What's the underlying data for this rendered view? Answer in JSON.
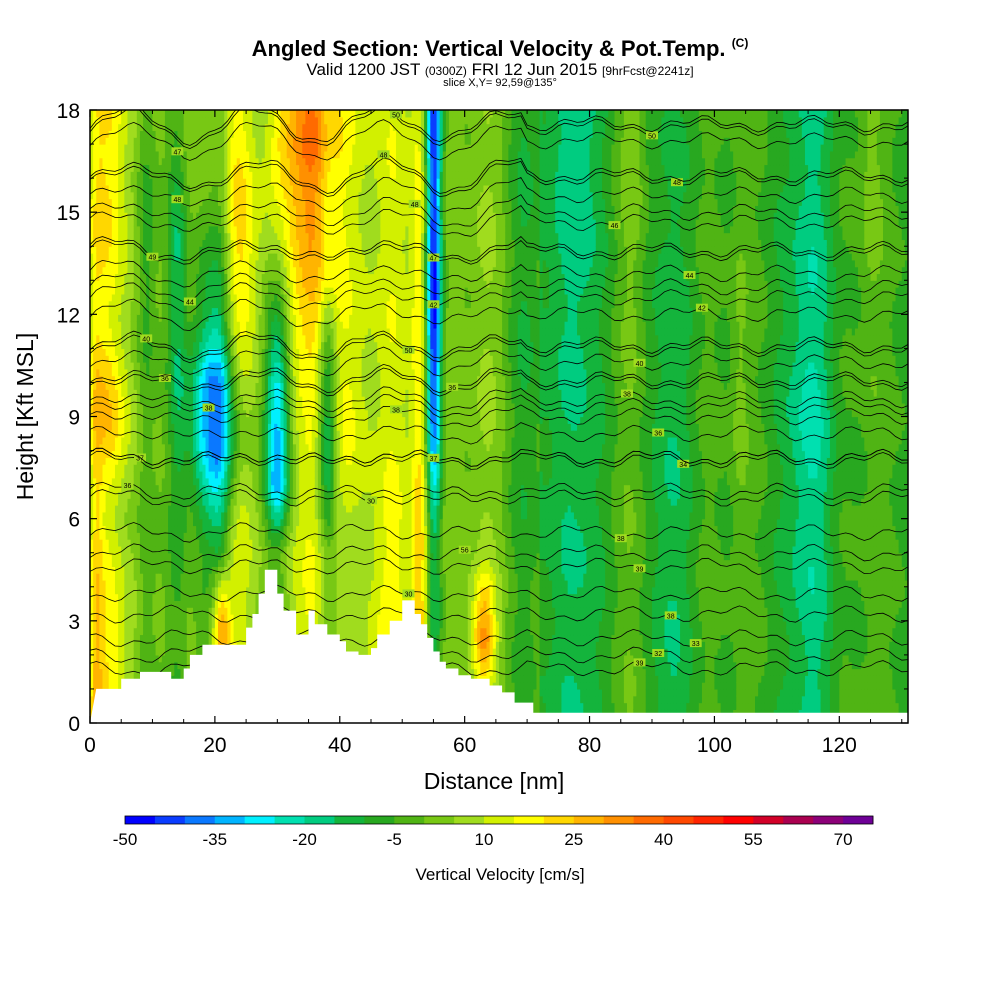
{
  "header": {
    "title": "Angled Section: Vertical Velocity & Pot.Temp.",
    "title_mark": "(C)",
    "valid_prefix": "Valid 1200 JST",
    "valid_utc": "(0300Z)",
    "valid_date": "FRI 12 Jun 2015",
    "forecast": "[9hrFcst@2241z]",
    "slice": "slice X,Y= 92,59@135°"
  },
  "chart_data": {
    "type": "heatmap",
    "xlabel": "Distance [nm]",
    "ylabel": "Height [Kft MSL]",
    "xlim": [
      0,
      131
    ],
    "ylim": [
      0,
      18
    ],
    "x_ticks": [
      0,
      20,
      40,
      60,
      80,
      100,
      120
    ],
    "y_ticks": [
      0,
      3,
      6,
      9,
      12,
      15,
      18
    ],
    "colorbar": {
      "label": "Vertical Velocity [cm/s]",
      "tick_labels": [
        "-50",
        "-35",
        "-20",
        "-5",
        "10",
        "25",
        "40",
        "55",
        "70"
      ],
      "min": -50,
      "max": 75,
      "step": 5,
      "colors": [
        "#0000ff",
        "#0a3cff",
        "#0a78ff",
        "#00b4ff",
        "#00f0ff",
        "#00e0b0",
        "#00cc80",
        "#14b43c",
        "#28a820",
        "#50b414",
        "#78c814",
        "#a0dc1e",
        "#d2f000",
        "#ffff00",
        "#ffd700",
        "#ffb400",
        "#ff9000",
        "#ff6a00",
        "#ff4800",
        "#ff2400",
        "#ff0000",
        "#d20028",
        "#aa0050",
        "#8c0078",
        "#6e0096"
      ]
    },
    "velocity_columns": [
      {
        "x": 1,
        "w": 1,
        "profile": [
          [
            0,
            15
          ],
          [
            18,
            5
          ]
        ]
      },
      {
        "x": 3,
        "w": 3.5,
        "profile": [
          [
            2,
            20
          ],
          [
            6,
            12
          ],
          [
            9,
            25
          ],
          [
            12,
            15
          ],
          [
            15,
            20
          ],
          [
            18,
            20
          ]
        ]
      },
      {
        "x": 9,
        "w": 1.5,
        "profile": [
          [
            3,
            -5
          ],
          [
            9,
            -5
          ],
          [
            14,
            -10
          ],
          [
            18,
            -5
          ]
        ]
      },
      {
        "x": 14,
        "w": 1.5,
        "profile": [
          [
            4,
            -5
          ],
          [
            9,
            -10
          ],
          [
            14,
            -15
          ],
          [
            18,
            -5
          ]
        ]
      },
      {
        "x": 20,
        "w": 4,
        "profile": [
          [
            1,
            -5
          ],
          [
            5,
            -5
          ],
          [
            8,
            -35
          ],
          [
            10,
            -35
          ],
          [
            12,
            -15
          ],
          [
            15,
            0
          ],
          [
            18,
            5
          ]
        ]
      },
      {
        "x": 21,
        "w": 1.5,
        "profile": [
          [
            2,
            30
          ],
          [
            3,
            30
          ],
          [
            4,
            15
          ],
          [
            5,
            -5
          ]
        ]
      },
      {
        "x": 24,
        "w": 3,
        "profile": [
          [
            9,
            15
          ],
          [
            13,
            25
          ],
          [
            16,
            20
          ],
          [
            18,
            15
          ]
        ]
      },
      {
        "x": 30,
        "w": 2,
        "profile": [
          [
            5,
            -10
          ],
          [
            7,
            -40
          ],
          [
            10,
            -35
          ],
          [
            13,
            -10
          ],
          [
            16,
            5
          ]
        ]
      },
      {
        "x": 35,
        "w": 5,
        "profile": [
          [
            9,
            15
          ],
          [
            12,
            25
          ],
          [
            15,
            30
          ],
          [
            17,
            40
          ],
          [
            18,
            35
          ]
        ]
      },
      {
        "x": 38,
        "w": 1.5,
        "profile": [
          [
            5,
            -10
          ],
          [
            8,
            -30
          ],
          [
            11,
            -20
          ],
          [
            13,
            -5
          ]
        ]
      },
      {
        "x": 41,
        "w": 3,
        "profile": [
          [
            4,
            5
          ],
          [
            9,
            15
          ],
          [
            13,
            10
          ],
          [
            18,
            10
          ]
        ]
      },
      {
        "x": 48,
        "w": 3,
        "profile": [
          [
            4,
            20
          ],
          [
            8,
            15
          ],
          [
            12,
            15
          ],
          [
            18,
            15
          ]
        ]
      },
      {
        "x": 55,
        "w": 1.3,
        "profile": [
          [
            5,
            -15
          ],
          [
            9,
            -40
          ],
          [
            12,
            -50
          ],
          [
            15,
            -45
          ],
          [
            18,
            -45
          ]
        ]
      },
      {
        "x": 53,
        "w": 1.5,
        "profile": [
          [
            4,
            25
          ],
          [
            9,
            20
          ],
          [
            14,
            20
          ],
          [
            18,
            15
          ]
        ]
      },
      {
        "x": 63,
        "w": 2,
        "profile": [
          [
            1,
            15
          ],
          [
            2.5,
            35
          ],
          [
            4,
            20
          ],
          [
            5,
            5
          ]
        ]
      },
      {
        "x": 70,
        "w": 3,
        "profile": [
          [
            0,
            -5
          ],
          [
            9,
            -10
          ],
          [
            18,
            -10
          ]
        ]
      },
      {
        "x": 78,
        "w": 4,
        "profile": [
          [
            0,
            -10
          ],
          [
            9,
            -10
          ],
          [
            18,
            -15
          ]
        ]
      },
      {
        "x": 87,
        "w": 2,
        "profile": [
          [
            0,
            5
          ],
          [
            9,
            5
          ],
          [
            18,
            10
          ]
        ]
      },
      {
        "x": 93,
        "w": 3,
        "profile": [
          [
            0,
            -10
          ],
          [
            9,
            -10
          ],
          [
            18,
            -5
          ]
        ]
      },
      {
        "x": 104,
        "w": 1.5,
        "profile": [
          [
            3,
            5
          ],
          [
            10,
            10
          ],
          [
            16,
            5
          ]
        ]
      },
      {
        "x": 115,
        "w": 4,
        "profile": [
          [
            2,
            -10
          ],
          [
            9,
            -15
          ],
          [
            16,
            -10
          ]
        ]
      },
      {
        "x": 125,
        "w": 2,
        "profile": [
          [
            0,
            5
          ],
          [
            8,
            5
          ],
          [
            16,
            10
          ]
        ]
      }
    ],
    "terrain": [
      [
        0,
        0
      ],
      [
        1,
        1
      ],
      [
        5,
        1
      ],
      [
        5,
        1.3
      ],
      [
        8,
        1.3
      ],
      [
        8,
        1.5
      ],
      [
        13,
        1.5
      ],
      [
        13,
        1.3
      ],
      [
        15,
        1.3
      ],
      [
        15,
        1.6
      ],
      [
        16,
        1.6
      ],
      [
        16,
        2
      ],
      [
        18,
        2
      ],
      [
        18,
        2.3
      ],
      [
        20,
        2.3
      ],
      [
        20,
        2.3
      ],
      [
        25,
        2.3
      ],
      [
        25,
        2.8
      ],
      [
        26,
        2.8
      ],
      [
        26,
        3.2
      ],
      [
        27,
        3.2
      ],
      [
        27,
        3.8
      ],
      [
        28,
        3.8
      ],
      [
        28,
        4.5
      ],
      [
        30,
        4.5
      ],
      [
        30,
        3.8
      ],
      [
        31,
        3.8
      ],
      [
        31,
        3.3
      ],
      [
        33,
        3.3
      ],
      [
        33,
        2.6
      ],
      [
        35,
        2.6
      ],
      [
        35,
        3.3
      ],
      [
        36,
        3.3
      ],
      [
        36,
        2.9
      ],
      [
        38,
        2.9
      ],
      [
        38,
        2.6
      ],
      [
        40,
        2.6
      ],
      [
        40,
        2.4
      ],
      [
        41,
        2.4
      ],
      [
        41,
        2.1
      ],
      [
        43,
        2.1
      ],
      [
        43,
        2.0
      ],
      [
        45,
        2.0
      ],
      [
        45,
        2.2
      ],
      [
        46,
        2.2
      ],
      [
        46,
        2.6
      ],
      [
        48,
        2.6
      ],
      [
        48,
        3.0
      ],
      [
        50,
        3.0
      ],
      [
        50,
        3.6
      ],
      [
        52,
        3.6
      ],
      [
        52,
        3.2
      ],
      [
        53,
        3.2
      ],
      [
        53,
        2.9
      ],
      [
        54,
        2.9
      ],
      [
        54,
        2.5
      ],
      [
        55,
        2.5
      ],
      [
        55,
        2.1
      ],
      [
        56,
        2.1
      ],
      [
        56,
        1.8
      ],
      [
        57,
        1.8
      ],
      [
        57,
        1.6
      ],
      [
        59,
        1.6
      ],
      [
        59,
        1.4
      ],
      [
        61,
        1.4
      ],
      [
        61,
        1.3
      ],
      [
        64,
        1.3
      ],
      [
        64,
        1.1
      ],
      [
        66,
        1.1
      ],
      [
        66,
        0.9
      ],
      [
        68,
        0.9
      ],
      [
        68,
        0.6
      ],
      [
        71,
        0.6
      ],
      [
        71,
        0.3
      ],
      [
        131,
        0.3
      ],
      [
        131,
        0
      ]
    ],
    "theta_contours": [
      {
        "level": "39",
        "base": 1.6,
        "label_x": 88
      },
      {
        "level": "32",
        "base": 2.0,
        "label_x": 91
      },
      {
        "level": "33",
        "base": 2.5,
        "label_x": 97
      },
      {
        "level": "38",
        "base": 3.2,
        "label_x": 93
      },
      {
        "level": "30",
        "base": 3.8,
        "label_x": 51
      },
      {
        "level": "39",
        "base": 4.6,
        "label_x": 88
      },
      {
        "level": "56",
        "base": 5.0,
        "label_x": 60
      },
      {
        "level": "38",
        "base": 5.6,
        "label_x": 85
      },
      {
        "level": "30",
        "base": 6.6,
        "label_x": 45
      },
      {
        "level": "36",
        "base": 6.8,
        "label_x": 6
      },
      {
        "level": "34",
        "base": 7.7,
        "label_x": 95
      },
      {
        "level": "37",
        "base": 7.8,
        "label_x": 8
      },
      {
        "level": "37",
        "base": 7.8,
        "label_x": 55
      },
      {
        "level": "36",
        "base": 8.5,
        "label_x": 91
      },
      {
        "level": "38",
        "base": 9.0,
        "label_x": 49
      },
      {
        "level": "38",
        "base": 9.3,
        "label_x": 19
      },
      {
        "level": "38",
        "base": 9.5,
        "label_x": 86
      },
      {
        "level": "36",
        "base": 10.0,
        "label_x": 12
      },
      {
        "level": "36",
        "base": 10.1,
        "label_x": 58
      },
      {
        "level": "40",
        "base": 10.6,
        "label_x": 88
      },
      {
        "level": "50",
        "base": 11.0,
        "label_x": 51
      },
      {
        "level": "40",
        "base": 11.1,
        "label_x": 9
      },
      {
        "level": "42",
        "base": 12.0,
        "label_x": 98
      },
      {
        "level": "42",
        "base": 12.5,
        "label_x": 55
      },
      {
        "level": "44",
        "base": 12.8,
        "label_x": 16
      },
      {
        "level": "44",
        "base": 13.2,
        "label_x": 96
      },
      {
        "level": "47",
        "base": 13.8,
        "label_x": 55
      },
      {
        "level": "49",
        "base": 13.9,
        "label_x": 10
      },
      {
        "level": "46",
        "base": 14.7,
        "label_x": 84
      },
      {
        "level": "48",
        "base": 15.0,
        "label_x": 52
      },
      {
        "level": "48",
        "base": 15.5,
        "label_x": 14
      },
      {
        "level": "48",
        "base": 16.0,
        "label_x": 94
      },
      {
        "level": "48",
        "base": 16.1,
        "label_x": 47
      },
      {
        "level": "47",
        "base": 17.1,
        "label_x": 14
      },
      {
        "level": "50",
        "base": 17.5,
        "label_x": 90
      },
      {
        "level": "50",
        "base": 17.6,
        "label_x": 49
      }
    ]
  }
}
